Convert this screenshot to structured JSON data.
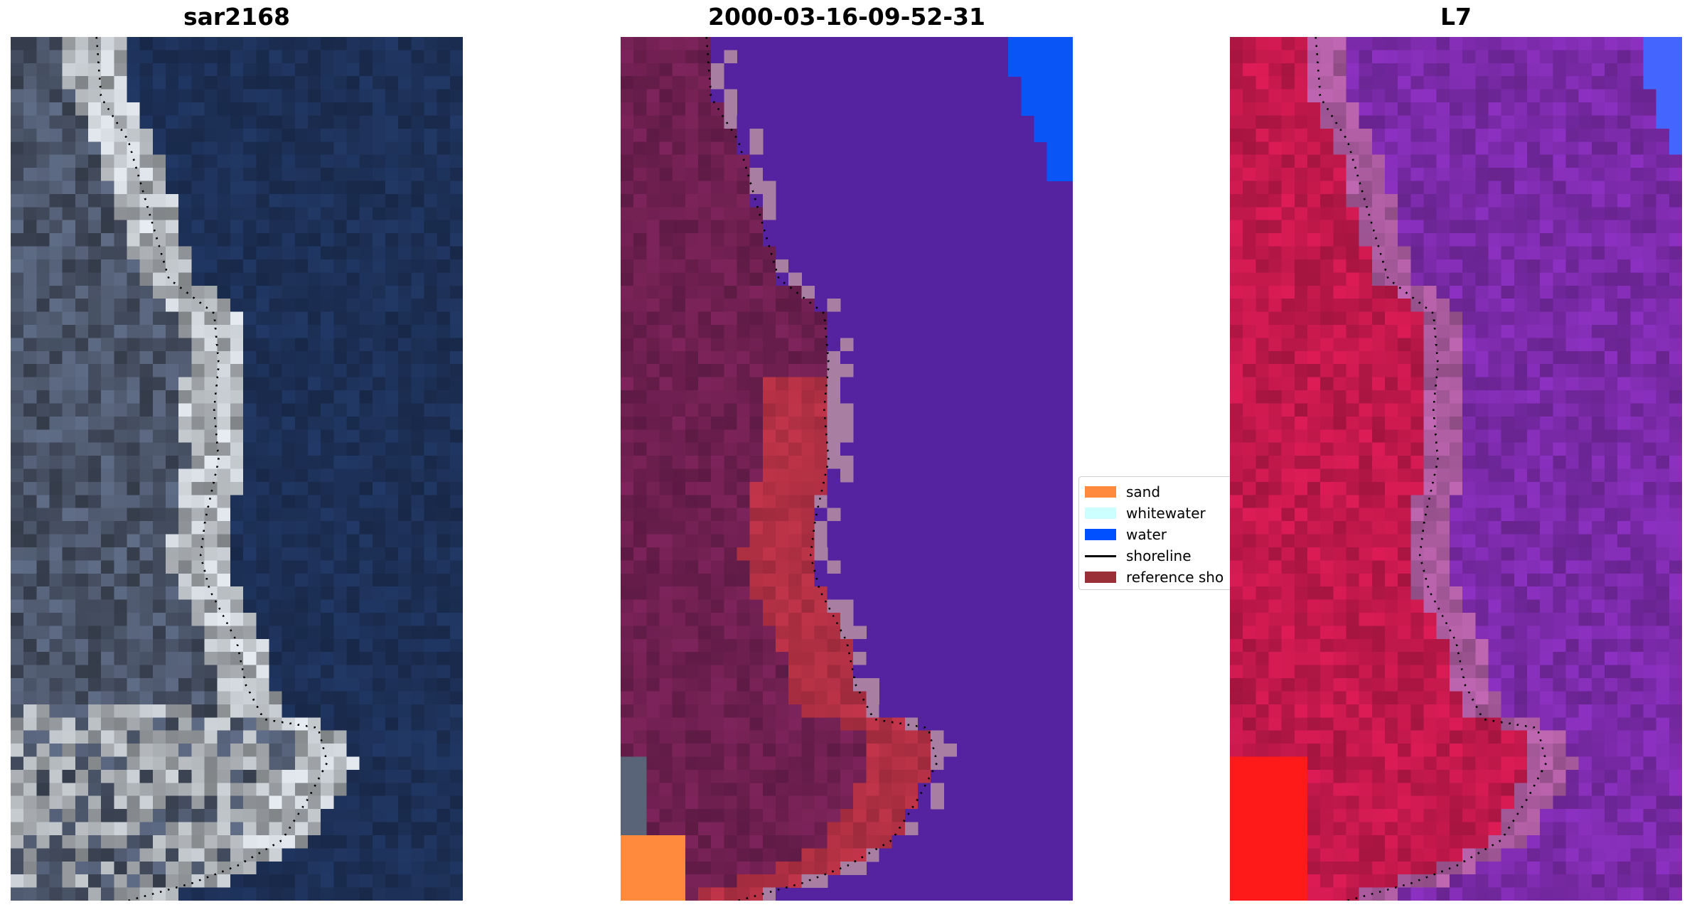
{
  "panels": [
    {
      "title": "sar2168"
    },
    {
      "title": "2000-03-16-09-52-31"
    },
    {
      "title": "L7"
    }
  ],
  "legend": {
    "items": [
      {
        "label": "sand",
        "color": "#ff8a3d",
        "kind": "patch"
      },
      {
        "label": "whitewater",
        "color": "#ccffff",
        "kind": "patch"
      },
      {
        "label": "water",
        "color": "#0050ff",
        "kind": "patch"
      },
      {
        "label": "shoreline",
        "color": "#000000",
        "kind": "line"
      },
      {
        "label": "reference sho",
        "color": "#9b2f38",
        "kind": "patch"
      }
    ]
  },
  "colors": {
    "rgb_water": "#1c2f55",
    "rgb_land": "#4a5468",
    "rgb_beach": "#e6ecf2",
    "class_water": "#5523a0",
    "class_land": "#6e1f50",
    "class_reference": "#b93246",
    "class_buffer": "#a97ea3",
    "class_water_corner": "#0a55f5",
    "class_sand": "#ff8a3d",
    "false_color_sea": "#7a2aa8",
    "false_color_land": "#c0184a",
    "false_color_margin": "#a85a9c",
    "false_color_corner_red": "#ff1a1a",
    "false_color_corner_blue": "#4466ff"
  }
}
